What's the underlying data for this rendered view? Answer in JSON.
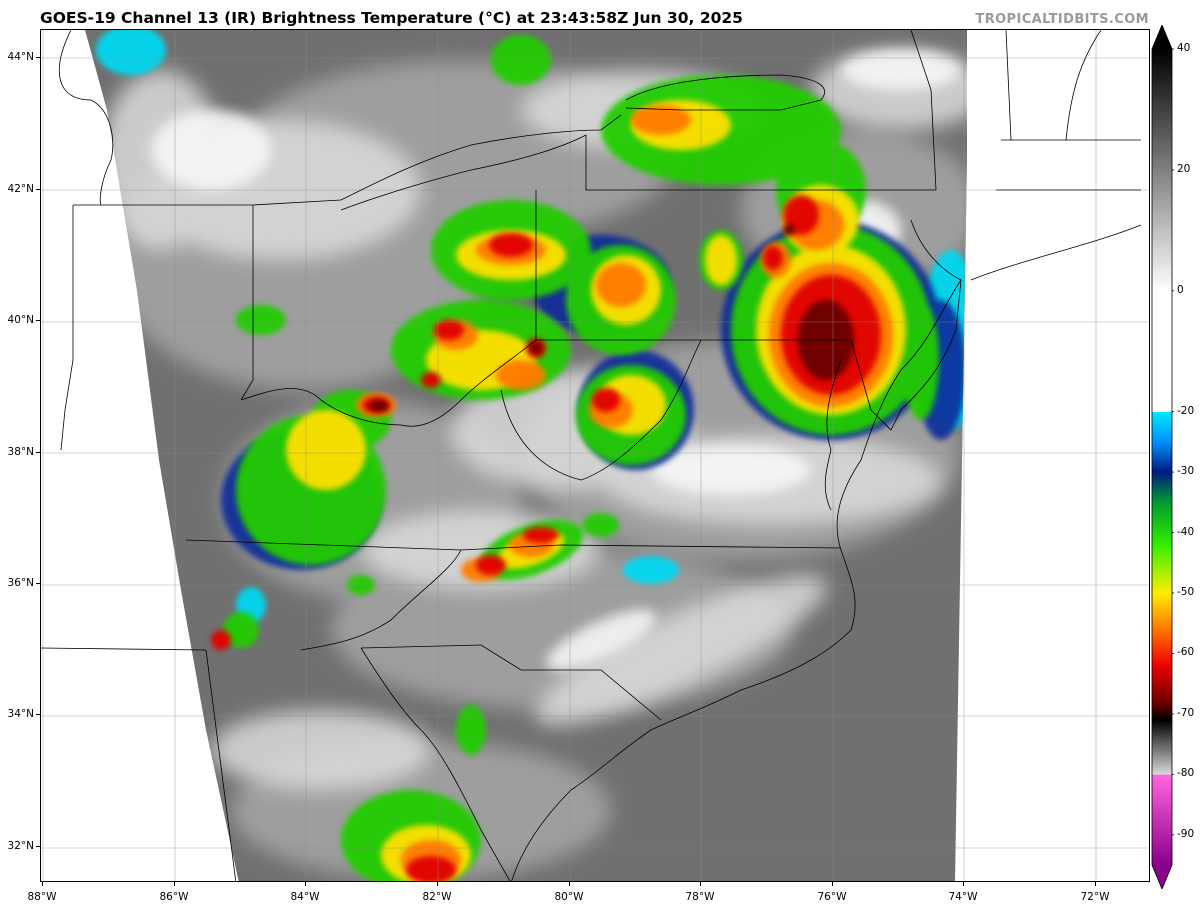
{
  "header": {
    "title": "GOES-19 Channel 13 (IR) Brightness Temperature (°C) at 23:43:58Z Jun 30, 2025",
    "credit": "TROPICALTIDBITS.COM"
  },
  "map": {
    "region": "Ohio Valley, Mid-Atlantic and Carolinas",
    "lat_labels": [
      "44°N",
      "42°N",
      "40°N",
      "38°N",
      "36°N",
      "34°N",
      "32°N"
    ],
    "lon_labels": [
      "88°W",
      "86°W",
      "84°W",
      "82°W",
      "80°W",
      "78°W",
      "76°W",
      "74°W",
      "72°W"
    ],
    "lat_range": [
      31.45,
      44.4
    ],
    "lon_range": [
      -88.05,
      -71.15
    ],
    "colors": {
      "background": "#ffffff",
      "warm_surface": "#6e6e6e",
      "cloud_gray": "#a8a8a8",
      "high_cloud": "#e8e8e8",
      "cyan": "#00e5ff",
      "blue": "#0033cc",
      "green": "#22cc00",
      "yellow": "#ffee00",
      "orange": "#ff8800",
      "red": "#dd0000",
      "dark_red": "#700000"
    }
  },
  "colorbar": {
    "min": -95,
    "max": 40,
    "labels": [
      "40",
      "20",
      "0",
      "-20",
      "-30",
      "-40",
      "-50",
      "-60",
      "-70",
      "-80",
      "-90"
    ],
    "stops": [
      {
        "t": 40,
        "color": "#000000"
      },
      {
        "t": 0,
        "color": "#ffffff"
      },
      {
        "t": -20,
        "color": "#ffffff"
      },
      {
        "t": -20.1,
        "color": "#00e8ff"
      },
      {
        "t": -25,
        "color": "#0090ff"
      },
      {
        "t": -30,
        "color": "#001a80"
      },
      {
        "t": -35,
        "color": "#009a30"
      },
      {
        "t": -42,
        "color": "#33ee00"
      },
      {
        "t": -50,
        "color": "#ffee00"
      },
      {
        "t": -56,
        "color": "#ff7700"
      },
      {
        "t": -62,
        "color": "#ee0000"
      },
      {
        "t": -68,
        "color": "#700000"
      },
      {
        "t": -71,
        "color": "#000000"
      },
      {
        "t": -80,
        "color": "#d8d8d8"
      },
      {
        "t": -80.1,
        "color": "#ff66dd"
      },
      {
        "t": -95,
        "color": "#8a008a"
      }
    ]
  }
}
